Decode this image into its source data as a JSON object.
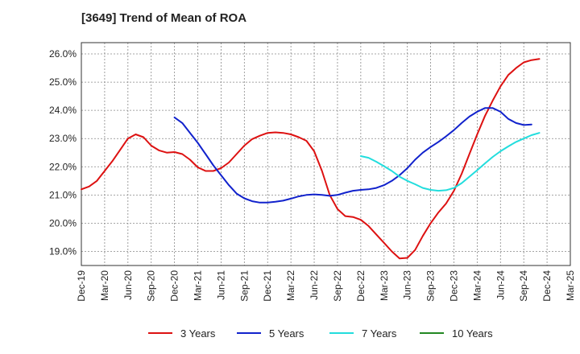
{
  "title": "[3649]  Trend of Mean of ROA",
  "chart_data": {
    "type": "line",
    "title": "[3649]  Trend of Mean of ROA",
    "xlabel": "",
    "ylabel": "",
    "x_ticks": [
      "Dec-19",
      "Mar-20",
      "Jun-20",
      "Sep-20",
      "Dec-20",
      "Mar-21",
      "Jun-21",
      "Sep-21",
      "Dec-21",
      "Mar-22",
      "Jun-22",
      "Sep-22",
      "Dec-22",
      "Mar-23",
      "Jun-23",
      "Sep-23",
      "Dec-23",
      "Mar-24",
      "Jun-24",
      "Sep-24",
      "Dec-24",
      "Mar-25"
    ],
    "y_ticks": [
      "19.0%",
      "20.0%",
      "21.0%",
      "22.0%",
      "23.0%",
      "24.0%",
      "25.0%",
      "26.0%"
    ],
    "ylim": [
      18.5,
      26.4
    ],
    "grid": true,
    "legend_position": "bottom",
    "series": [
      {
        "name": "3 Years",
        "color": "#dd1111",
        "points": [
          [
            "Dec-19",
            21.2
          ],
          [
            "Jan-20",
            21.3
          ],
          [
            "Feb-20",
            21.5
          ],
          [
            "Mar-20",
            21.85
          ],
          [
            "Apr-20",
            22.2
          ],
          [
            "May-20",
            22.6
          ],
          [
            "Jun-20",
            23.0
          ],
          [
            "Jul-20",
            23.15
          ],
          [
            "Aug-20",
            23.05
          ],
          [
            "Sep-20",
            22.75
          ],
          [
            "Oct-20",
            22.58
          ],
          [
            "Nov-20",
            22.5
          ],
          [
            "Dec-20",
            22.52
          ],
          [
            "Jan-21",
            22.45
          ],
          [
            "Feb-21",
            22.25
          ],
          [
            "Mar-21",
            21.98
          ],
          [
            "Apr-21",
            21.85
          ],
          [
            "May-21",
            21.85
          ],
          [
            "Jun-21",
            21.95
          ],
          [
            "Jul-21",
            22.15
          ],
          [
            "Aug-21",
            22.45
          ],
          [
            "Sep-21",
            22.75
          ],
          [
            "Oct-21",
            22.98
          ],
          [
            "Nov-21",
            23.1
          ],
          [
            "Dec-21",
            23.2
          ],
          [
            "Jan-22",
            23.22
          ],
          [
            "Feb-22",
            23.2
          ],
          [
            "Mar-22",
            23.15
          ],
          [
            "Apr-22",
            23.05
          ],
          [
            "May-22",
            22.92
          ],
          [
            "Jun-22",
            22.55
          ],
          [
            "Jul-22",
            21.85
          ],
          [
            "Aug-22",
            21.0
          ],
          [
            "Sep-22",
            20.5
          ],
          [
            "Oct-22",
            20.25
          ],
          [
            "Nov-22",
            20.22
          ],
          [
            "Dec-22",
            20.12
          ],
          [
            "Jan-23",
            19.9
          ],
          [
            "Feb-23",
            19.6
          ],
          [
            "Mar-23",
            19.3
          ],
          [
            "Apr-23",
            19.0
          ],
          [
            "May-23",
            18.75
          ],
          [
            "Jun-23",
            18.77
          ],
          [
            "Jul-23",
            19.05
          ],
          [
            "Aug-23",
            19.55
          ],
          [
            "Sep-23",
            20.0
          ],
          [
            "Oct-23",
            20.38
          ],
          [
            "Nov-23",
            20.7
          ],
          [
            "Dec-23",
            21.15
          ],
          [
            "Jan-24",
            21.75
          ],
          [
            "Feb-24",
            22.45
          ],
          [
            "Mar-24",
            23.15
          ],
          [
            "Apr-24",
            23.8
          ],
          [
            "May-24",
            24.35
          ],
          [
            "Jun-24",
            24.85
          ],
          [
            "Jul-24",
            25.25
          ],
          [
            "Aug-24",
            25.5
          ],
          [
            "Sep-24",
            25.7
          ],
          [
            "Oct-24",
            25.78
          ],
          [
            "Nov-24",
            25.82
          ]
        ]
      },
      {
        "name": "5 Years",
        "color": "#1122cc",
        "points": [
          [
            "Dec-20",
            23.75
          ],
          [
            "Jan-21",
            23.55
          ],
          [
            "Feb-21",
            23.2
          ],
          [
            "Mar-21",
            22.85
          ],
          [
            "Apr-21",
            22.45
          ],
          [
            "May-21",
            22.05
          ],
          [
            "Jun-21",
            21.7
          ],
          [
            "Jul-21",
            21.35
          ],
          [
            "Aug-21",
            21.05
          ],
          [
            "Sep-21",
            20.88
          ],
          [
            "Oct-21",
            20.78
          ],
          [
            "Nov-21",
            20.73
          ],
          [
            "Dec-21",
            20.73
          ],
          [
            "Jan-22",
            20.76
          ],
          [
            "Feb-22",
            20.8
          ],
          [
            "Mar-22",
            20.87
          ],
          [
            "Apr-22",
            20.95
          ],
          [
            "May-22",
            21.0
          ],
          [
            "Jun-22",
            21.02
          ],
          [
            "Jul-22",
            21.0
          ],
          [
            "Aug-22",
            20.97
          ],
          [
            "Sep-22",
            21.0
          ],
          [
            "Oct-22",
            21.08
          ],
          [
            "Nov-22",
            21.15
          ],
          [
            "Dec-22",
            21.18
          ],
          [
            "Jan-23",
            21.2
          ],
          [
            "Feb-23",
            21.25
          ],
          [
            "Mar-23",
            21.35
          ],
          [
            "Apr-23",
            21.5
          ],
          [
            "May-23",
            21.7
          ],
          [
            "Jun-23",
            21.95
          ],
          [
            "Jul-23",
            22.25
          ],
          [
            "Aug-23",
            22.5
          ],
          [
            "Sep-23",
            22.7
          ],
          [
            "Oct-23",
            22.88
          ],
          [
            "Nov-23",
            23.08
          ],
          [
            "Dec-23",
            23.3
          ],
          [
            "Jan-24",
            23.55
          ],
          [
            "Feb-24",
            23.78
          ],
          [
            "Mar-24",
            23.95
          ],
          [
            "Apr-24",
            24.08
          ],
          [
            "May-24",
            24.08
          ],
          [
            "Jun-24",
            23.95
          ],
          [
            "Jul-24",
            23.7
          ],
          [
            "Aug-24",
            23.55
          ],
          [
            "Sep-24",
            23.48
          ],
          [
            "Oct-24",
            23.5
          ]
        ]
      },
      {
        "name": "7 Years",
        "color": "#22dddd",
        "points": [
          [
            "Dec-22",
            22.38
          ],
          [
            "Jan-23",
            22.32
          ],
          [
            "Feb-23",
            22.18
          ],
          [
            "Mar-23",
            22.02
          ],
          [
            "Apr-23",
            21.85
          ],
          [
            "May-23",
            21.65
          ],
          [
            "Jun-23",
            21.5
          ],
          [
            "Jul-23",
            21.38
          ],
          [
            "Aug-23",
            21.25
          ],
          [
            "Sep-23",
            21.18
          ],
          [
            "Oct-23",
            21.15
          ],
          [
            "Nov-23",
            21.17
          ],
          [
            "Dec-23",
            21.25
          ],
          [
            "Jan-24",
            21.42
          ],
          [
            "Feb-24",
            21.65
          ],
          [
            "Mar-24",
            21.88
          ],
          [
            "Apr-24",
            22.12
          ],
          [
            "May-24",
            22.35
          ],
          [
            "Jun-24",
            22.55
          ],
          [
            "Jul-24",
            22.72
          ],
          [
            "Aug-24",
            22.88
          ],
          [
            "Sep-24",
            23.0
          ],
          [
            "Oct-24",
            23.12
          ],
          [
            "Nov-24",
            23.2
          ]
        ]
      },
      {
        "name": "10 Years",
        "color": "#228822",
        "points": []
      }
    ]
  }
}
